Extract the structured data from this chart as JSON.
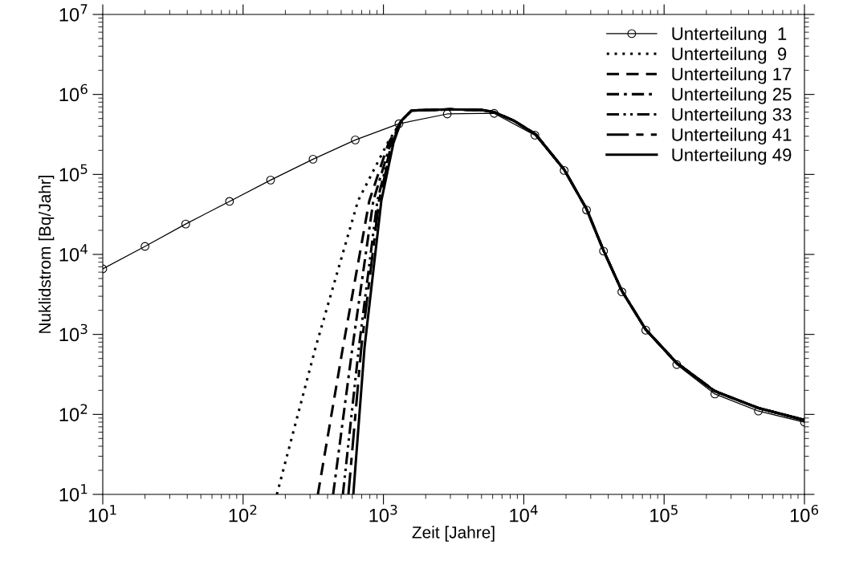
{
  "chart_data": {
    "type": "line",
    "xlabel": "Zeit [Jahre]",
    "ylabel": "Nuklidstrom [Bq/Jahr]",
    "log": "xy",
    "legend": "top right",
    "grid": false,
    "xlim": [
      10,
      1000000
    ],
    "ylim": [
      10,
      10000000
    ],
    "xticks": [
      {
        "value": 10,
        "label": "10$^{1}$"
      },
      {
        "value": 100,
        "label": "10$^{2}$"
      },
      {
        "value": 1000,
        "label": "10$^{3}$"
      },
      {
        "value": 10000,
        "label": "10$^{4}$"
      },
      {
        "value": 100000,
        "label": "10$^{5}$"
      },
      {
        "value": 1000000,
        "label": "10$^{6}$"
      }
    ],
    "yticks": [
      {
        "value": 10,
        "label": "10$^{1}$"
      },
      {
        "value": 100,
        "label": "10$^{2}$"
      },
      {
        "value": 1000,
        "label": "10$^{3}$"
      },
      {
        "value": 10000,
        "label": "10$^{4}$"
      },
      {
        "value": 100000,
        "label": "10$^{5}$"
      },
      {
        "value": 1000000,
        "label": "10$^{6}$"
      },
      {
        "value": 10000000,
        "label": "10$^{7}$"
      }
    ],
    "series": [
      {
        "name": "Unterteilung  1",
        "color": "#000000",
        "marker": "circle",
        "line_style": "solid",
        "x": [
          10,
          20,
          39,
          80,
          157,
          315,
          630,
          1290,
          2850,
          6150,
          12000,
          19400,
          28000,
          37000,
          50000,
          74000,
          123000,
          230000,
          470000,
          1000000
        ],
        "values": [
          6600,
          12600,
          24000,
          46000,
          85000,
          155000,
          270000,
          430000,
          570000,
          580000,
          310000,
          112000,
          36000,
          11000,
          3400,
          1130,
          420,
          180,
          110,
          80
        ]
      },
      {
        "name": "Unterteilung  9",
        "color": "#000000",
        "marker": "none",
        "line_style": "dotted",
        "x": [
          174,
          328,
          659,
          1074,
          1343,
          1590,
          2960,
          5010,
          6190,
          8490,
          12100,
          19400,
          28000,
          37000,
          50000,
          74000,
          123000,
          230000,
          470000,
          1000000
        ],
        "values": [
          10,
          681,
          46800,
          250000,
          470000,
          630000,
          650000,
          640000,
          600000,
          470000,
          320000,
          115000,
          37000,
          11200,
          3500,
          1150,
          440,
          195,
          120,
          85
        ]
      },
      {
        "name": "Unterteilung 17",
        "color": "#000000",
        "marker": "none",
        "line_style": "dashed",
        "x": [
          341,
          514,
          793,
          1090,
          1343,
          1590,
          2960,
          5010,
          6190,
          8490,
          12100,
          19400,
          28000,
          37000,
          50000,
          74000,
          123000,
          230000,
          470000,
          1000000
        ],
        "values": [
          10,
          681,
          46800,
          250000,
          470000,
          630000,
          650000,
          640000,
          600000,
          470000,
          320000,
          115000,
          37000,
          11200,
          3500,
          1150,
          440,
          195,
          120,
          85
        ]
      },
      {
        "name": "Unterteilung 25",
        "color": "#000000",
        "marker": "none",
        "line_style": "dashdot",
        "x": [
          438,
          601,
          847,
          1130,
          1343,
          1590,
          2960,
          5010,
          6190,
          8490,
          12100,
          19400,
          28000,
          37000,
          50000,
          74000,
          123000,
          230000,
          470000,
          1000000
        ],
        "values": [
          10,
          681,
          46800,
          250000,
          470000,
          630000,
          650000,
          640000,
          600000,
          470000,
          320000,
          115000,
          37000,
          11200,
          3500,
          1150,
          440,
          195,
          120,
          85
        ]
      },
      {
        "name": "Unterteilung 33",
        "color": "#000000",
        "marker": "none",
        "line_style": "dashdotdot",
        "x": [
          514,
          668,
          905,
          1150,
          1343,
          1590,
          2960,
          5010,
          6190,
          8490,
          12100,
          19400,
          28000,
          37000,
          50000,
          74000,
          123000,
          230000,
          470000,
          1000000
        ],
        "values": [
          10,
          681,
          46800,
          250000,
          470000,
          630000,
          650000,
          640000,
          600000,
          470000,
          320000,
          115000,
          37000,
          11200,
          3500,
          1150,
          440,
          195,
          120,
          85
        ]
      },
      {
        "name": "Unterteilung 41",
        "color": "#000000",
        "marker": "none",
        "line_style": "longdash",
        "x": [
          563,
          695,
          930,
          1160,
          1343,
          1590,
          2960,
          5010,
          6190,
          8490,
          12100,
          19400,
          28000,
          37000,
          50000,
          74000,
          123000,
          230000,
          470000,
          1000000
        ],
        "values": [
          10,
          681,
          46800,
          250000,
          470000,
          630000,
          650000,
          640000,
          600000,
          470000,
          320000,
          115000,
          37000,
          11200,
          3500,
          1150,
          440,
          195,
          120,
          85
        ]
      },
      {
        "name": "Unterteilung 49",
        "color": "#000000",
        "marker": "none",
        "line_style": "solid",
        "x": [
          610,
          733,
          966,
          1180,
          1343,
          1590,
          2960,
          5010,
          6190,
          8490,
          12100,
          19400,
          28000,
          37000,
          50000,
          74000,
          123000,
          230000,
          470000,
          1000000
        ],
        "values": [
          10,
          681,
          46800,
          250000,
          470000,
          630000,
          650000,
          640000,
          600000,
          470000,
          320000,
          115000,
          37000,
          11200,
          3500,
          1150,
          440,
          195,
          120,
          85
        ]
      }
    ]
  }
}
